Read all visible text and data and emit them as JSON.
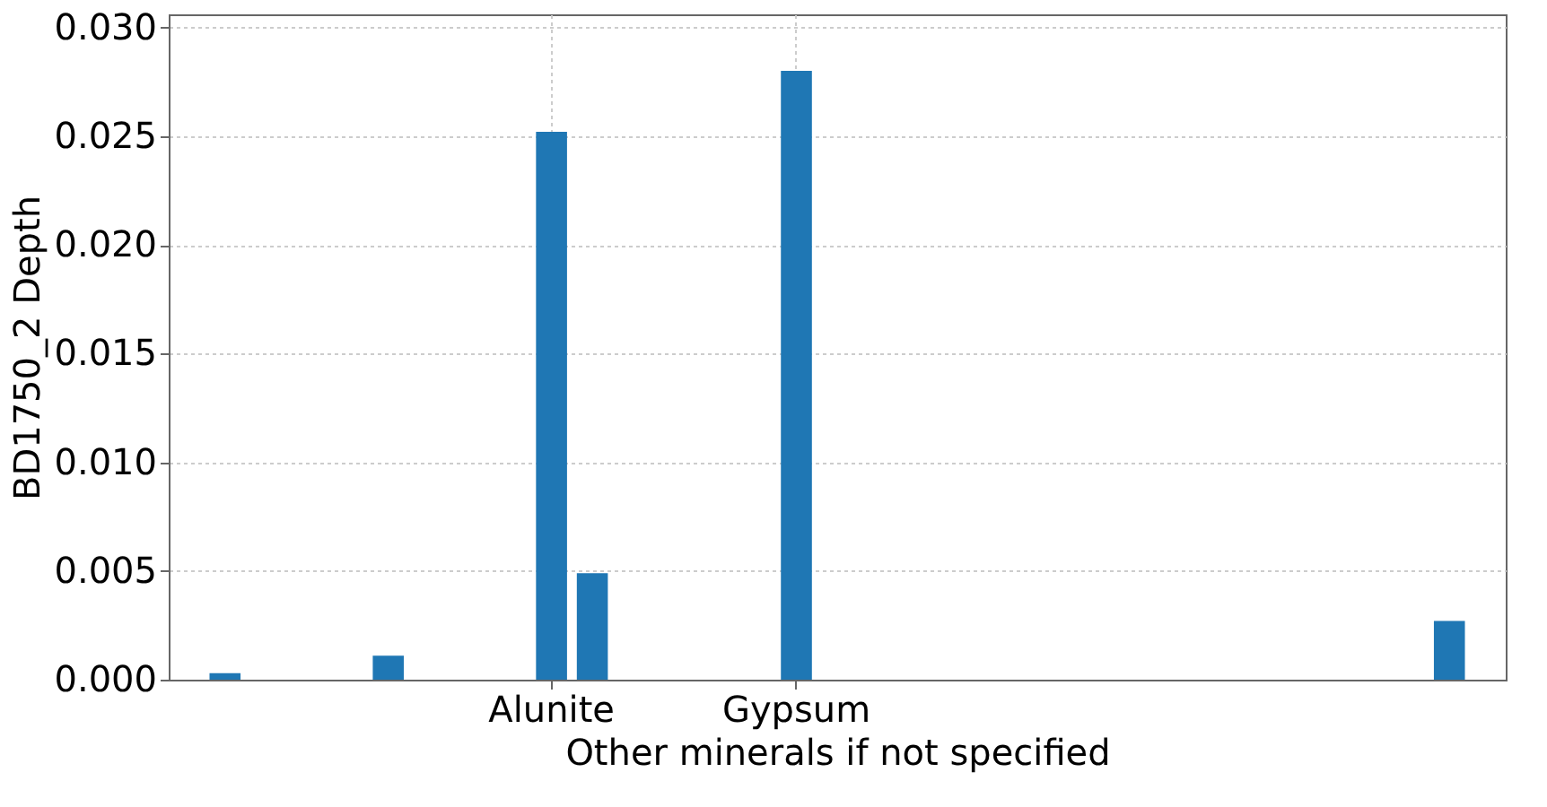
{
  "chart_data": {
    "type": "bar",
    "xlabel": "Other minerals if not specified",
    "ylabel": "BD1750_2 Depth",
    "categories": [
      null,
      null,
      null,
      null,
      null,
      null,
      null,
      null,
      "Alunite",
      null,
      null,
      null,
      null,
      null,
      "Gypsum",
      null,
      null,
      null,
      null,
      null,
      null,
      null,
      null,
      null,
      null,
      null,
      null,
      null,
      null,
      null,
      null
    ],
    "values": [
      0.0003,
      null,
      null,
      null,
      0.0011,
      null,
      null,
      null,
      0.0252,
      0.0049,
      null,
      null,
      null,
      null,
      0.028,
      null,
      null,
      null,
      null,
      null,
      null,
      null,
      null,
      null,
      null,
      null,
      null,
      null,
      null,
      null,
      0.0027
    ],
    "color": "#1f77b4",
    "ylim": [
      0,
      0.0306
    ],
    "yticks": [
      {
        "value": 0,
        "label": "0.000"
      },
      {
        "value": 0.005,
        "label": "0.005"
      },
      {
        "value": 0.01,
        "label": "0.010"
      },
      {
        "value": 0.015,
        "label": "0.015"
      },
      {
        "value": 0.02,
        "label": "0.020"
      },
      {
        "value": 0.025,
        "label": "0.025"
      },
      {
        "value": 0.03,
        "label": "0.030"
      }
    ],
    "grid": true
  }
}
